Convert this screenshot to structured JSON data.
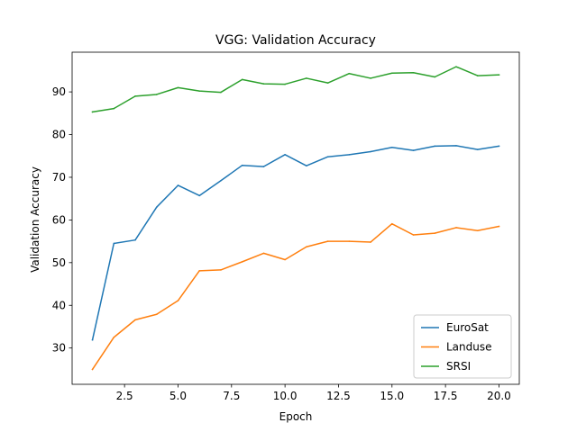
{
  "chart_data": {
    "type": "line",
    "title": "VGG: Validation Accuracy",
    "xlabel": "Epoch",
    "ylabel": "Validation Accuracy",
    "xlim": [
      0.05,
      20.95
    ],
    "ylim": [
      21.5,
      99.3
    ],
    "xticks": [
      2.5,
      5.0,
      7.5,
      10.0,
      12.5,
      15.0,
      17.5,
      20.0
    ],
    "xtick_labels": [
      "2.5",
      "5.0",
      "7.5",
      "10.0",
      "12.5",
      "15.0",
      "17.5",
      "20.0"
    ],
    "yticks": [
      30,
      40,
      50,
      60,
      70,
      80,
      90
    ],
    "ytick_labels": [
      "30",
      "40",
      "50",
      "60",
      "70",
      "80",
      "90"
    ],
    "grid": false,
    "legend_position": "lower-right",
    "x": [
      1,
      2,
      3,
      4,
      5,
      6,
      7,
      8,
      9,
      10,
      11,
      12,
      13,
      14,
      15,
      16,
      17,
      18,
      19,
      20
    ],
    "series": [
      {
        "name": "EuroSat",
        "color": "#1f77b4",
        "values": [
          31.9,
          54.5,
          55.3,
          63.0,
          68.1,
          65.7,
          69.2,
          72.8,
          72.5,
          75.3,
          72.7,
          74.8,
          75.3,
          76.0,
          77.0,
          76.3,
          77.3,
          77.4,
          76.5,
          77.3
        ]
      },
      {
        "name": "Landuse",
        "color": "#ff7f0e",
        "values": [
          25.0,
          32.5,
          36.6,
          37.9,
          41.1,
          48.1,
          48.3,
          50.2,
          52.2,
          50.7,
          53.7,
          55.0,
          55.0,
          54.8,
          59.1,
          56.5,
          56.9,
          58.2,
          57.5,
          58.5
        ]
      },
      {
        "name": "SRSI",
        "color": "#2ca02c",
        "values": [
          85.3,
          86.1,
          89.0,
          89.4,
          91.0,
          90.2,
          89.9,
          92.9,
          91.9,
          91.8,
          93.2,
          92.1,
          94.3,
          93.2,
          94.4,
          94.5,
          93.5,
          95.9,
          93.8,
          94.0
        ]
      }
    ]
  }
}
